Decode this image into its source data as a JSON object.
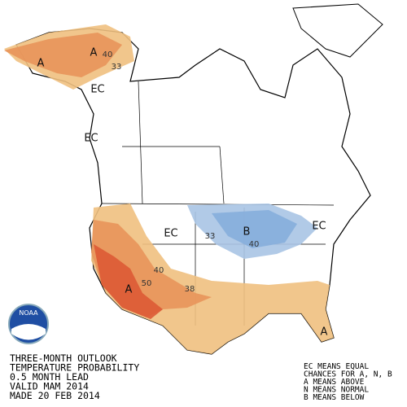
{
  "logo": "NOAA",
  "title_lines": [
    "THREE-MONTH OUTLOOK",
    "TEMPERATURE PROBABILITY",
    "0.5 MONTH LEAD",
    "VALID MAM 2014",
    "MADE 20 FEB 2014"
  ],
  "legend_lines": [
    "EC MEANS EQUAL",
    "CHANCES FOR A, N, B",
    "A MEANS ABOVE",
    "N MEANS NORMAL",
    "B MEANS BELOW"
  ],
  "map_labels": [
    "A",
    "A",
    "40",
    "33",
    "EC",
    "EC",
    "EC",
    "33",
    "B",
    "40",
    "EC",
    "40",
    "50",
    "A",
    "38",
    "A"
  ]
}
